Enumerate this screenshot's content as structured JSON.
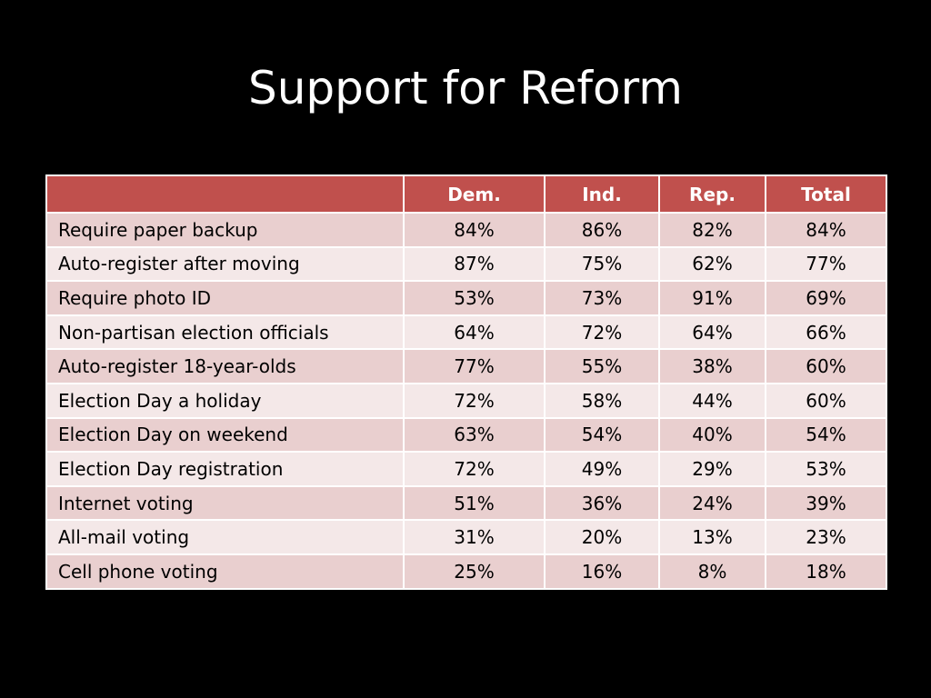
{
  "slide": {
    "title": "Support for Reform"
  },
  "table": {
    "columns": [
      "",
      "Dem.",
      "Ind.",
      "Rep.",
      "Total"
    ],
    "rows": [
      {
        "label": "Require paper backup",
        "dem": "84%",
        "ind": "86%",
        "rep": "82%",
        "total": "84%"
      },
      {
        "label": "Auto-register after moving",
        "dem": "87%",
        "ind": "75%",
        "rep": "62%",
        "total": "77%"
      },
      {
        "label": "Require photo ID",
        "dem": "53%",
        "ind": "73%",
        "rep": "91%",
        "total": "69%"
      },
      {
        "label": "Non-partisan election officials",
        "dem": "64%",
        "ind": "72%",
        "rep": "64%",
        "total": "66%"
      },
      {
        "label": "Auto-register 18-year-olds",
        "dem": "77%",
        "ind": "55%",
        "rep": "38%",
        "total": "60%"
      },
      {
        "label": "Election Day a holiday",
        "dem": "72%",
        "ind": "58%",
        "rep": "44%",
        "total": "60%"
      },
      {
        "label": "Election Day on weekend",
        "dem": "63%",
        "ind": "54%",
        "rep": "40%",
        "total": "54%"
      },
      {
        "label": "Election Day registration",
        "dem": "72%",
        "ind": "49%",
        "rep": "29%",
        "total": "53%"
      },
      {
        "label": "Internet voting",
        "dem": "51%",
        "ind": "36%",
        "rep": "24%",
        "total": "39%"
      },
      {
        "label": "All-mail voting",
        "dem": "31%",
        "ind": "20%",
        "rep": "13%",
        "total": "23%"
      },
      {
        "label": "Cell phone voting",
        "dem": "25%",
        "ind": "16%",
        "rep": "8%",
        "total": "18%"
      }
    ]
  },
  "colors": {
    "background": "#000000",
    "header": "#c0504d",
    "row_odd": "#e9cfcf",
    "row_even": "#f4e8e8"
  }
}
